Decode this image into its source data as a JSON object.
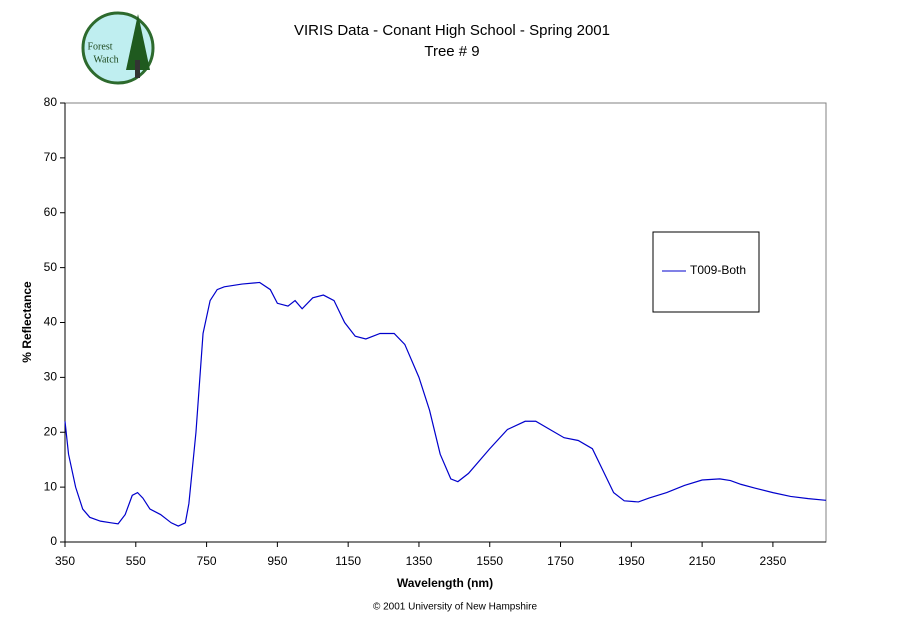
{
  "logo": {
    "lines": [
      "Forest",
      "Watch"
    ]
  },
  "footer": "© 2001 University of New Hampshire",
  "chart_data": {
    "type": "line",
    "title": "VIRIS Data - Conant High School - Spring 2001",
    "subtitle": "Tree # 9",
    "x_label": "Wavelength (nm)",
    "y_label": "% Reflectance",
    "xlim": [
      350,
      2500
    ],
    "ylim": [
      0,
      80
    ],
    "xticks": [
      350,
      550,
      750,
      950,
      1150,
      1350,
      1550,
      1750,
      1950,
      2150,
      2350
    ],
    "yticks": [
      0,
      10,
      20,
      30,
      40,
      50,
      60,
      70,
      80
    ],
    "legend_position": "right",
    "x": [
      350,
      360,
      380,
      400,
      420,
      450,
      480,
      500,
      520,
      540,
      555,
      570,
      590,
      620,
      650,
      670,
      690,
      700,
      720,
      740,
      760,
      780,
      800,
      850,
      900,
      930,
      950,
      980,
      1000,
      1020,
      1050,
      1080,
      1110,
      1140,
      1170,
      1200,
      1240,
      1280,
      1310,
      1350,
      1380,
      1410,
      1440,
      1460,
      1490,
      1550,
      1600,
      1650,
      1680,
      1720,
      1760,
      1800,
      1840,
      1870,
      1900,
      1930,
      1970,
      2000,
      2050,
      2100,
      2150,
      2200,
      2230,
      2260,
      2300,
      2350,
      2400,
      2450,
      2500
    ],
    "series": [
      {
        "name": "T009-Both",
        "color": "#0000cc",
        "values": [
          22,
          16,
          10,
          6,
          4.5,
          3.8,
          3.5,
          3.3,
          5,
          8.5,
          9,
          8,
          6,
          5,
          3.5,
          2.9,
          3.5,
          7,
          20,
          38,
          44,
          46,
          46.5,
          47,
          47.3,
          46,
          43.5,
          43,
          44,
          42.5,
          44.5,
          45,
          44,
          40,
          37.5,
          37,
          38,
          38,
          36,
          30,
          24,
          16,
          11.5,
          11,
          12.5,
          17,
          20.5,
          22,
          22,
          20.5,
          19,
          18.5,
          17,
          13,
          9,
          7.5,
          7.3,
          8,
          9,
          10.3,
          11.3,
          11.5,
          11.2,
          10.5,
          9.8,
          9,
          8.3,
          7.9,
          7.6
        ]
      }
    ]
  }
}
